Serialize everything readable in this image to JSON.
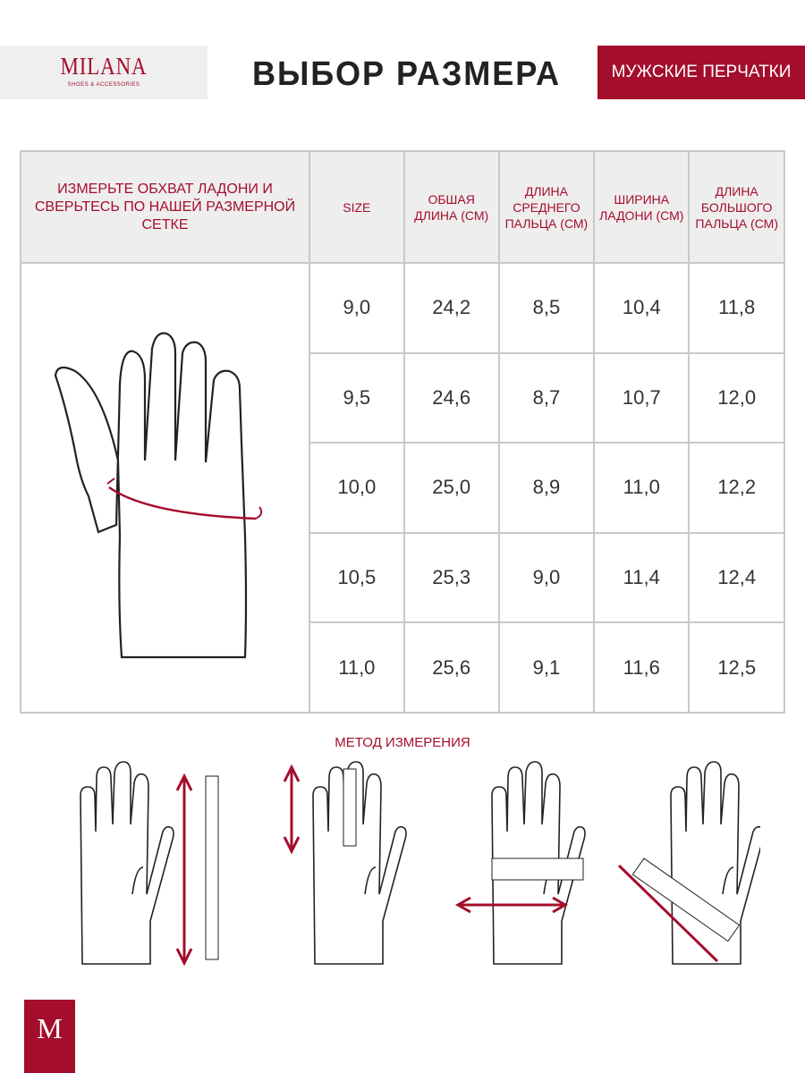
{
  "header": {
    "brand": "MILANA",
    "brand_tagline": "SHOES & ACCESSORIES",
    "title": "ВЫБОР  РАЗМЕРА",
    "category": "МУЖСКИЕ ПЕРЧАТКИ"
  },
  "table": {
    "intro": "ИЗМЕРЬТЕ ОБХВАТ ЛАДОНИ И СВЕРЬТЕСЬ ПО НАШЕЙ РАЗМЕРНОЙ СЕТКЕ",
    "columns": [
      "SIZE",
      "ОБШАЯ ДЛИНА (СМ)",
      "ДЛИНА СРЕДНЕГО ПАЛЬЦА (СМ)",
      "ШИРИНА ЛАДОНИ (СМ)",
      "ДЛИНА БОЛЬШОГО ПАЛЬЦА (СМ)"
    ],
    "rows": [
      [
        "9,0",
        "24,2",
        "8,5",
        "10,4",
        "11,8"
      ],
      [
        "9,5",
        "24,6",
        "8,7",
        "10,7",
        "12,0"
      ],
      [
        "10,0",
        "25,0",
        "8,9",
        "11,0",
        "12,2"
      ],
      [
        "10,5",
        "25,3",
        "9,0",
        "11,4",
        "12,4"
      ],
      [
        "11,0",
        "25,6",
        "9,1",
        "11,6",
        "12,5"
      ]
    ]
  },
  "method_title": "МЕТОД ИЗМЕРЕНИЯ",
  "footer_mark": "M",
  "colors": {
    "accent": "#a50d2d",
    "header_bg": "#eeeeee",
    "border": "#c9c9c9"
  }
}
